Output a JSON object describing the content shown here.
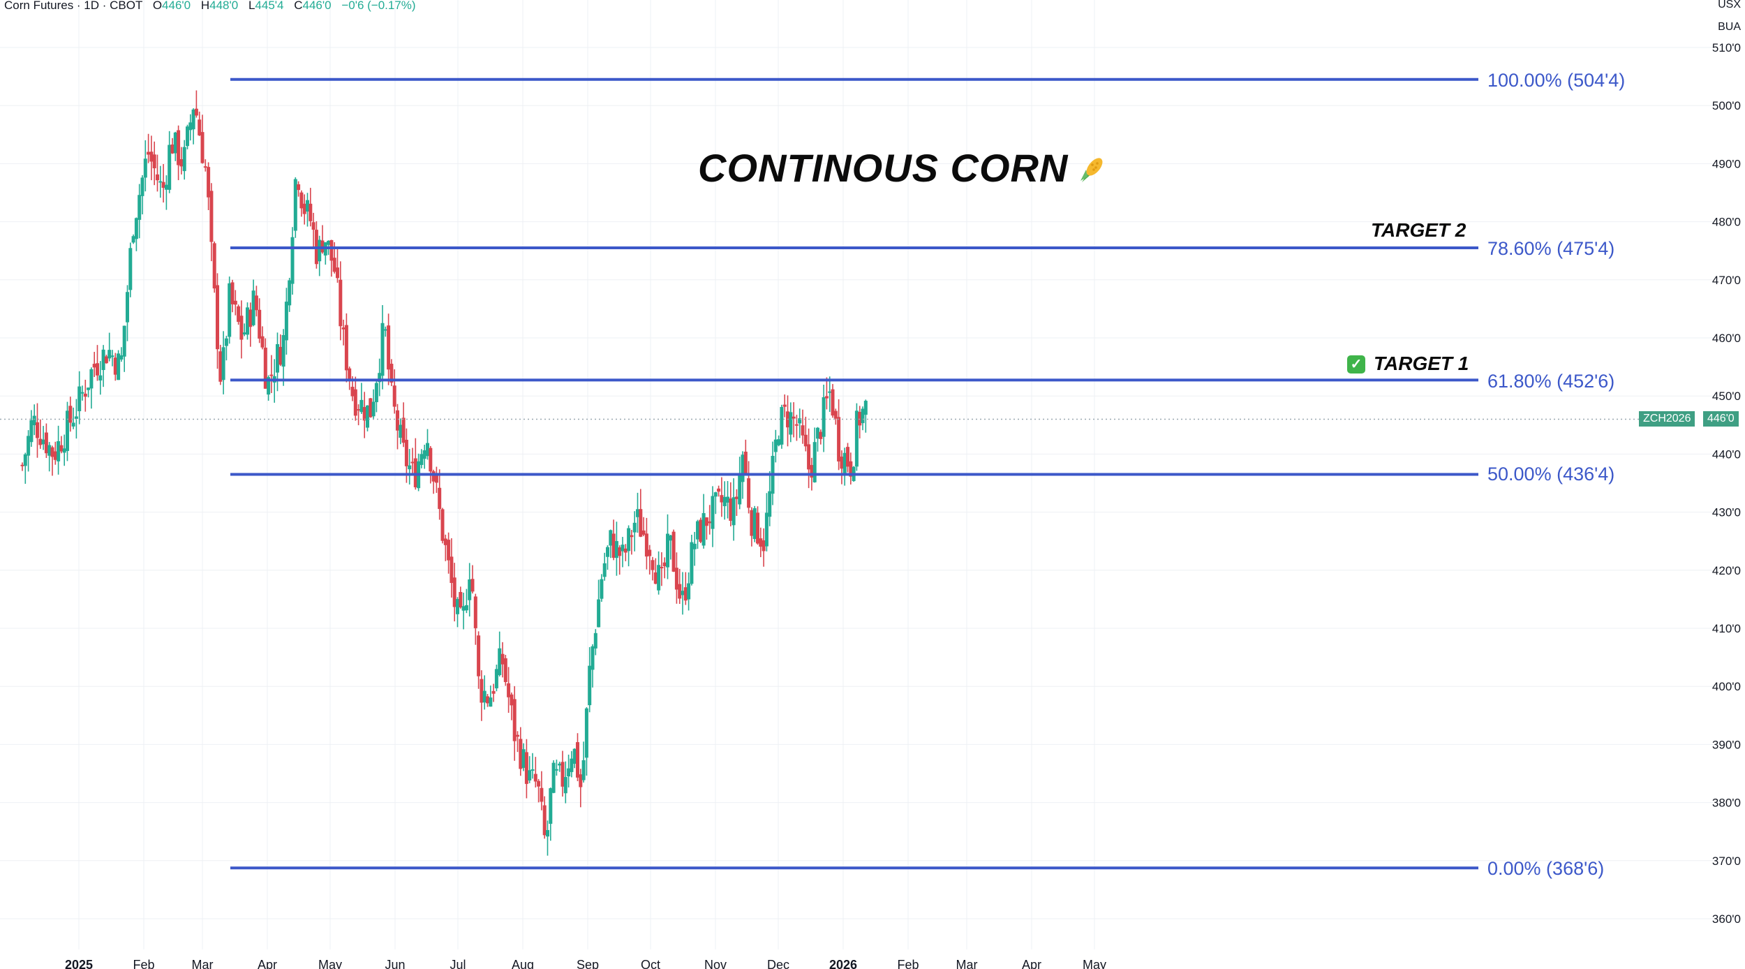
{
  "header": {
    "symbol": "Corn Futures · 1D · CBOT",
    "open_label": "O",
    "open": "446'0",
    "high_label": "H",
    "high": "448'0",
    "low_label": "L",
    "low": "445'4",
    "close_label": "C",
    "close": "446'0",
    "change": "−0'6 (−0.17%)"
  },
  "units": {
    "currency": "USX",
    "per": "BUA"
  },
  "title": "CONTINOUS CORN",
  "targets": {
    "t1": "TARGET 1",
    "t2": "TARGET 2"
  },
  "fib_levels": [
    {
      "label": "100.00% (504'4)",
      "value": 504.5
    },
    {
      "label": "78.60% (475'4)",
      "value": 475.5
    },
    {
      "label": "61.80% (452'6)",
      "value": 452.75
    },
    {
      "label": "50.00% (436'4)",
      "value": 436.5
    },
    {
      "label": "0.00% (368'6)",
      "value": 368.75
    }
  ],
  "price_tag": {
    "symbol": "ZCH2026",
    "price": "446'0",
    "value": 446.0
  },
  "colors": {
    "up": "#22ab94",
    "down": "#d9454e",
    "fib": "#3c58c9",
    "grid": "#eef0f4",
    "tag": "#3f9f83"
  },
  "chart_data": {
    "type": "candlestick",
    "title": "CONTINOUS CORN",
    "ylim": [
      357,
      512
    ],
    "y_ticks": [
      "360'0",
      "370'0",
      "380'0",
      "390'0",
      "400'0",
      "410'0",
      "420'0",
      "430'0",
      "440'0",
      "450'0",
      "460'0",
      "470'0",
      "480'0",
      "490'0",
      "500'0",
      "510'0"
    ],
    "x_ticks": [
      {
        "label": "2025",
        "date": "2025-01-01",
        "bold": true
      },
      {
        "label": "Feb",
        "date": "2025-02-01"
      },
      {
        "label": "Mar",
        "date": "2025-03-01"
      },
      {
        "label": "Apr",
        "date": "2025-04-01"
      },
      {
        "label": "May",
        "date": "2025-05-01"
      },
      {
        "label": "Jun",
        "date": "2025-06-01"
      },
      {
        "label": "Jul",
        "date": "2025-07-01"
      },
      {
        "label": "Aug",
        "date": "2025-08-01"
      },
      {
        "label": "Sep",
        "date": "2025-09-01"
      },
      {
        "label": "Oct",
        "date": "2025-10-01"
      },
      {
        "label": "Nov",
        "date": "2025-11-01"
      },
      {
        "label": "Dec",
        "date": "2025-12-01"
      },
      {
        "label": "2026",
        "date": "2026-01-01",
        "bold": true
      },
      {
        "label": "Feb",
        "date": "2026-02-01"
      },
      {
        "label": "Mar",
        "date": "2026-03-01"
      },
      {
        "label": "Apr",
        "date": "2026-04-01"
      },
      {
        "label": "May",
        "date": "2026-05-01"
      }
    ],
    "close_path": [
      [
        "2024-12-05",
        438
      ],
      [
        "2024-12-10",
        446
      ],
      [
        "2024-12-20",
        440
      ],
      [
        "2024-12-31",
        448
      ],
      [
        "2025-01-08",
        455
      ],
      [
        "2025-01-15",
        458
      ],
      [
        "2025-01-21",
        455
      ],
      [
        "2025-01-27",
        480
      ],
      [
        "2025-02-03",
        492
      ],
      [
        "2025-02-10",
        485
      ],
      [
        "2025-02-14",
        494
      ],
      [
        "2025-02-20",
        490
      ],
      [
        "2025-02-25",
        501
      ],
      [
        "2025-03-03",
        488
      ],
      [
        "2025-03-06",
        470
      ],
      [
        "2025-03-10",
        452
      ],
      [
        "2025-03-14",
        467
      ],
      [
        "2025-03-20",
        460
      ],
      [
        "2025-03-26",
        467
      ],
      [
        "2025-04-01",
        452
      ],
      [
        "2025-04-04",
        455
      ],
      [
        "2025-04-09",
        460
      ],
      [
        "2025-04-15",
        490
      ],
      [
        "2025-04-18",
        483
      ],
      [
        "2025-04-22",
        480
      ],
      [
        "2025-04-25",
        474
      ],
      [
        "2025-04-28",
        478
      ],
      [
        "2025-05-03",
        472
      ],
      [
        "2025-05-07",
        460
      ],
      [
        "2025-05-12",
        450
      ],
      [
        "2025-05-20",
        447
      ],
      [
        "2025-05-27",
        462
      ],
      [
        "2025-05-30",
        450
      ],
      [
        "2025-06-05",
        440
      ],
      [
        "2025-06-10",
        436
      ],
      [
        "2025-06-16",
        444
      ],
      [
        "2025-06-23",
        428
      ],
      [
        "2025-06-30",
        413
      ],
      [
        "2025-07-03",
        410
      ],
      [
        "2025-07-07",
        422
      ],
      [
        "2025-07-11",
        400
      ],
      [
        "2025-07-16",
        398
      ],
      [
        "2025-07-22",
        405
      ],
      [
        "2025-07-28",
        392
      ],
      [
        "2025-08-04",
        384
      ],
      [
        "2025-08-08",
        383
      ],
      [
        "2025-08-12",
        372
      ],
      [
        "2025-08-15",
        384
      ],
      [
        "2025-08-20",
        384
      ],
      [
        "2025-08-25",
        390
      ],
      [
        "2025-08-29",
        382
      ],
      [
        "2025-09-02",
        403
      ],
      [
        "2025-09-08",
        420
      ],
      [
        "2025-09-12",
        425
      ],
      [
        "2025-09-18",
        422
      ],
      [
        "2025-09-24",
        429
      ],
      [
        "2025-10-01",
        424
      ],
      [
        "2025-10-06",
        417
      ],
      [
        "2025-10-10",
        425
      ],
      [
        "2025-10-16",
        414
      ],
      [
        "2025-10-22",
        425
      ],
      [
        "2025-10-28",
        429
      ],
      [
        "2025-11-05",
        432
      ],
      [
        "2025-11-10",
        430
      ],
      [
        "2025-11-14",
        440
      ],
      [
        "2025-11-18",
        429
      ],
      [
        "2025-11-24",
        425
      ],
      [
        "2025-11-26",
        430
      ],
      [
        "2025-12-01",
        445
      ],
      [
        "2025-12-05",
        447
      ],
      [
        "2025-12-10",
        445
      ],
      [
        "2025-12-16",
        437
      ],
      [
        "2025-12-22",
        446
      ],
      [
        "2025-12-26",
        451
      ],
      [
        "2025-12-30",
        441
      ],
      [
        "2026-01-05",
        438
      ],
      [
        "2026-01-08",
        446
      ],
      [
        "2026-01-12",
        448
      ]
    ]
  }
}
